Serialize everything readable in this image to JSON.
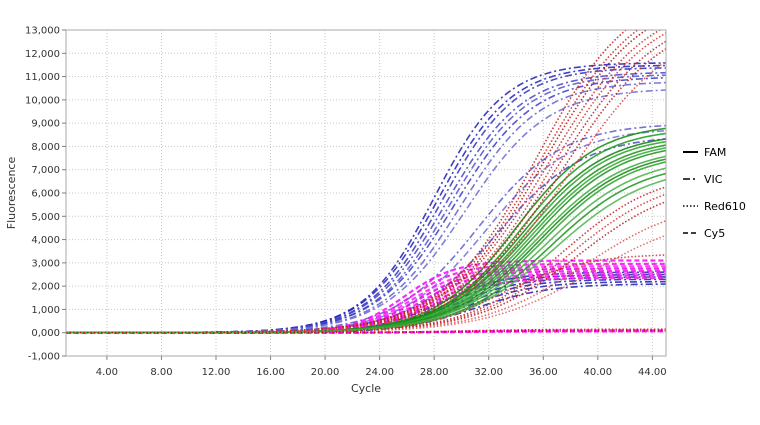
{
  "chart_data": {
    "type": "line",
    "title": "",
    "xlabel": "Cycle",
    "ylabel": "Fluorescence",
    "xlim": [
      1,
      45
    ],
    "ylim": [
      -1000,
      13000
    ],
    "x_ticks": [
      4,
      8,
      12,
      16,
      20,
      24,
      28,
      32,
      36,
      40,
      44
    ],
    "x_tick_labels": [
      "4.00",
      "8.00",
      "12.00",
      "16.00",
      "20.00",
      "24.00",
      "28.00",
      "32.00",
      "36.00",
      "40.00",
      "44.00"
    ],
    "y_ticks": [
      -1000,
      0,
      1000,
      2000,
      3000,
      4000,
      5000,
      6000,
      7000,
      8000,
      9000,
      10000,
      11000,
      12000,
      13000
    ],
    "y_tick_labels": [
      "-1,000",
      "0,000",
      "1,000",
      "2,000",
      "3,000",
      "4,000",
      "5,000",
      "6,000",
      "7,000",
      "8,000",
      "9,000",
      "10,000",
      "11,000",
      "12,000",
      "13,000"
    ],
    "grid": true,
    "legend_position": "right",
    "legend": [
      {
        "label": "FAM",
        "style": "solid"
      },
      {
        "label": "VIC",
        "style": "dashdot"
      },
      {
        "label": "Red610",
        "style": "dotted"
      },
      {
        "label": "Cy5",
        "style": "dashed"
      }
    ],
    "series_model": "sigmoid: y = baseline + plateau / (1 + exp(-(x - midpoint) / slope))",
    "series": [
      {
        "channel": "VIC",
        "color": "#1c1cb4",
        "style": "dashdot",
        "plateau": 11600,
        "midpoint": 28.0,
        "slope": 2.6,
        "baseline": 0
      },
      {
        "channel": "VIC",
        "color": "#2020bb",
        "style": "dashdot",
        "plateau": 11500,
        "midpoint": 28.3,
        "slope": 2.7,
        "baseline": 0
      },
      {
        "channel": "VIC",
        "color": "#3030c0",
        "style": "dashdot",
        "plateau": 11400,
        "midpoint": 28.6,
        "slope": 2.7,
        "baseline": 0
      },
      {
        "channel": "VIC",
        "color": "#4343c6",
        "style": "dashdot",
        "plateau": 11200,
        "midpoint": 28.9,
        "slope": 2.8,
        "baseline": 0
      },
      {
        "channel": "VIC",
        "color": "#5454cc",
        "style": "dashdot",
        "plateau": 11100,
        "midpoint": 29.2,
        "slope": 2.8,
        "baseline": 0
      },
      {
        "channel": "VIC",
        "color": "#3a3ac4",
        "style": "dashdot",
        "plateau": 11000,
        "midpoint": 29.5,
        "slope": 2.9,
        "baseline": 0
      },
      {
        "channel": "VIC",
        "color": "#6060d0",
        "style": "dashdot",
        "plateau": 10800,
        "midpoint": 29.9,
        "slope": 2.9,
        "baseline": 0
      },
      {
        "channel": "VIC",
        "color": "#6a6ad4",
        "style": "dashdot",
        "plateau": 10500,
        "midpoint": 30.3,
        "slope": 3.0,
        "baseline": 0
      },
      {
        "channel": "VIC",
        "color": "#5a5acc",
        "style": "dashdot",
        "plateau": 9000,
        "midpoint": 31.2,
        "slope": 3.1,
        "baseline": 0
      },
      {
        "channel": "VIC",
        "color": "#7070d6",
        "style": "dashdot",
        "plateau": 8800,
        "midpoint": 31.8,
        "slope": 3.1,
        "baseline": 0
      },
      {
        "channel": "VIC",
        "color": "#4848c8",
        "style": "dashdot",
        "plateau": 8500,
        "midpoint": 32.6,
        "slope": 3.2,
        "baseline": 0
      },
      {
        "channel": "VIC",
        "color": "#1a1ab0",
        "style": "dashdot",
        "plateau": 2600,
        "midpoint": 28.5,
        "slope": 2.4,
        "baseline": 0
      },
      {
        "channel": "VIC",
        "color": "#1a1ab0",
        "style": "dashdot",
        "plateau": 2500,
        "midpoint": 29.0,
        "slope": 2.4,
        "baseline": 0
      },
      {
        "channel": "VIC",
        "color": "#1a1ab0",
        "style": "dashdot",
        "plateau": 2400,
        "midpoint": 29.4,
        "slope": 2.5,
        "baseline": 0
      },
      {
        "channel": "VIC",
        "color": "#1a1ab0",
        "style": "dashdot",
        "plateau": 2300,
        "midpoint": 29.8,
        "slope": 2.5,
        "baseline": 0
      },
      {
        "channel": "VIC",
        "color": "#1a1ab0",
        "style": "dashdot",
        "plateau": 2200,
        "midpoint": 30.2,
        "slope": 2.6,
        "baseline": 0
      },
      {
        "channel": "VIC",
        "color": "#1a1ab0",
        "style": "dashdot",
        "plateau": 2100,
        "midpoint": 31.0,
        "slope": 2.7,
        "baseline": 0
      },
      {
        "channel": "Cy5",
        "color": "#ff00ff",
        "style": "dashed",
        "plateau": 3100,
        "midpoint": 25.8,
        "slope": 1.9,
        "baseline": 0
      },
      {
        "channel": "Cy5",
        "color": "#ee10ee",
        "style": "dashed",
        "plateau": 2950,
        "midpoint": 26.1,
        "slope": 1.9,
        "baseline": 0
      },
      {
        "channel": "Cy5",
        "color": "#ff20ff",
        "style": "dashed",
        "plateau": 2850,
        "midpoint": 26.4,
        "slope": 2.0,
        "baseline": 0
      },
      {
        "channel": "Cy5",
        "color": "#e000e0",
        "style": "dashed",
        "plateau": 2750,
        "midpoint": 26.7,
        "slope": 2.0,
        "baseline": 0
      },
      {
        "channel": "Cy5",
        "color": "#ff00ff",
        "style": "dashed",
        "plateau": 2650,
        "midpoint": 27.0,
        "slope": 2.0,
        "baseline": 0
      },
      {
        "channel": "Cy5",
        "color": "#f030f0",
        "style": "dashed",
        "plateau": 2550,
        "midpoint": 27.3,
        "slope": 2.1,
        "baseline": 0
      },
      {
        "channel": "Cy5",
        "color": "#ff00ff",
        "style": "dashed",
        "plateau": 2450,
        "midpoint": 27.6,
        "slope": 2.1,
        "baseline": 0
      },
      {
        "channel": "Cy5",
        "color": "#e020e0",
        "style": "dashed",
        "plateau": 2350,
        "midpoint": 27.9,
        "slope": 2.2,
        "baseline": 0
      },
      {
        "channel": "Cy5",
        "color": "#ff00ff",
        "style": "dashed",
        "plateau": 100,
        "midpoint": 30,
        "slope": 3,
        "baseline": 0
      },
      {
        "channel": "Cy5",
        "color": "#ff00ff",
        "style": "dashed",
        "plateau": 60,
        "midpoint": 30,
        "slope": 3,
        "baseline": 0
      },
      {
        "channel": "FAM",
        "color": "#118a11",
        "style": "solid",
        "plateau": 9000,
        "midpoint": 34.0,
        "slope": 3.0,
        "baseline": 0
      },
      {
        "channel": "FAM",
        "color": "#1a9a1a",
        "style": "solid",
        "plateau": 8800,
        "midpoint": 34.3,
        "slope": 3.0,
        "baseline": 0
      },
      {
        "channel": "FAM",
        "color": "#0f800f",
        "style": "solid",
        "plateau": 8600,
        "midpoint": 34.5,
        "slope": 3.1,
        "baseline": 0
      },
      {
        "channel": "FAM",
        "color": "#28a028",
        "style": "solid",
        "plateau": 8500,
        "midpoint": 34.7,
        "slope": 3.1,
        "baseline": 0
      },
      {
        "channel": "FAM",
        "color": "#159015",
        "style": "solid",
        "plateau": 8400,
        "midpoint": 34.9,
        "slope": 3.2,
        "baseline": 0
      },
      {
        "channel": "FAM",
        "color": "#30a830",
        "style": "solid",
        "plateau": 8300,
        "midpoint": 35.1,
        "slope": 3.2,
        "baseline": 0
      },
      {
        "channel": "FAM",
        "color": "#1a921a",
        "style": "solid",
        "plateau": 8200,
        "midpoint": 35.3,
        "slope": 3.2,
        "baseline": 0
      },
      {
        "channel": "FAM",
        "color": "#3aaa3a",
        "style": "solid",
        "plateau": 8000,
        "midpoint": 35.5,
        "slope": 3.3,
        "baseline": 0
      },
      {
        "channel": "FAM",
        "color": "#128812",
        "style": "solid",
        "plateau": 7900,
        "midpoint": 35.7,
        "slope": 3.3,
        "baseline": 0
      },
      {
        "channel": "FAM",
        "color": "#2c9e2c",
        "style": "solid",
        "plateau": 7800,
        "midpoint": 35.9,
        "slope": 3.3,
        "baseline": 0
      },
      {
        "channel": "FAM",
        "color": "#44b044",
        "style": "solid",
        "plateau": 7600,
        "midpoint": 36.2,
        "slope": 3.4,
        "baseline": 0
      },
      {
        "channel": "FAM",
        "color": "#1b931b",
        "style": "solid",
        "plateau": 7400,
        "midpoint": 36.5,
        "slope": 3.4,
        "baseline": 0
      },
      {
        "channel": "FAM",
        "color": "#4cb44c",
        "style": "solid",
        "plateau": 7200,
        "midpoint": 36.8,
        "slope": 3.5,
        "baseline": 0
      },
      {
        "channel": "Red610",
        "color": "#c01818",
        "style": "dotted",
        "plateau": 15000,
        "midpoint": 35.5,
        "slope": 3.5,
        "baseline": 0
      },
      {
        "channel": "Red610",
        "color": "#d02020",
        "style": "dotted",
        "plateau": 14800,
        "midpoint": 35.8,
        "slope": 3.6,
        "baseline": 0
      },
      {
        "channel": "Red610",
        "color": "#b01010",
        "style": "dotted",
        "plateau": 14600,
        "midpoint": 36.0,
        "slope": 3.6,
        "baseline": 0
      },
      {
        "channel": "Red610",
        "color": "#c82828",
        "style": "dotted",
        "plateau": 14400,
        "midpoint": 36.3,
        "slope": 3.7,
        "baseline": 0
      },
      {
        "channel": "Red610",
        "color": "#d83030",
        "style": "dotted",
        "plateau": 14200,
        "midpoint": 36.6,
        "slope": 3.7,
        "baseline": 0
      },
      {
        "channel": "Red610",
        "color": "#b82020",
        "style": "dotted",
        "plateau": 14000,
        "midpoint": 36.9,
        "slope": 3.8,
        "baseline": 0
      },
      {
        "channel": "Red610",
        "color": "#c01818",
        "style": "dotted",
        "plateau": 13800,
        "midpoint": 37.3,
        "slope": 3.8,
        "baseline": 0
      },
      {
        "channel": "Red610",
        "color": "#e04040",
        "style": "dotted",
        "plateau": 13500,
        "midpoint": 37.8,
        "slope": 3.9,
        "baseline": 0
      },
      {
        "channel": "Red610",
        "color": "#c02020",
        "style": "dotted",
        "plateau": 7000,
        "midpoint": 37.5,
        "slope": 3.5,
        "baseline": 0
      },
      {
        "channel": "Red610",
        "color": "#d03030",
        "style": "dotted",
        "plateau": 6800,
        "midpoint": 38.0,
        "slope": 3.6,
        "baseline": 0
      },
      {
        "channel": "Red610",
        "color": "#b81818",
        "style": "dotted",
        "plateau": 6600,
        "midpoint": 38.5,
        "slope": 3.7,
        "baseline": 0
      },
      {
        "channel": "Red610",
        "color": "#e05050",
        "style": "dotted",
        "plateau": 5800,
        "midpoint": 39.0,
        "slope": 3.8,
        "baseline": 0
      },
      {
        "channel": "Red610",
        "color": "#e06060",
        "style": "dotted",
        "plateau": 5200,
        "midpoint": 39.5,
        "slope": 3.9,
        "baseline": 0
      },
      {
        "channel": "Red610",
        "color": "#c83030",
        "style": "dotted",
        "plateau": 3400,
        "midpoint": 33.0,
        "slope": 3.0,
        "baseline": 0
      },
      {
        "channel": "Red610",
        "color": "#c01818",
        "style": "dotted",
        "plateau": 150,
        "midpoint": 30,
        "slope": 3,
        "baseline": 0
      },
      {
        "channel": "Red610",
        "color": "#c01818",
        "style": "dotted",
        "plateau": 80,
        "midpoint": 30,
        "slope": 3,
        "baseline": 0
      }
    ]
  }
}
